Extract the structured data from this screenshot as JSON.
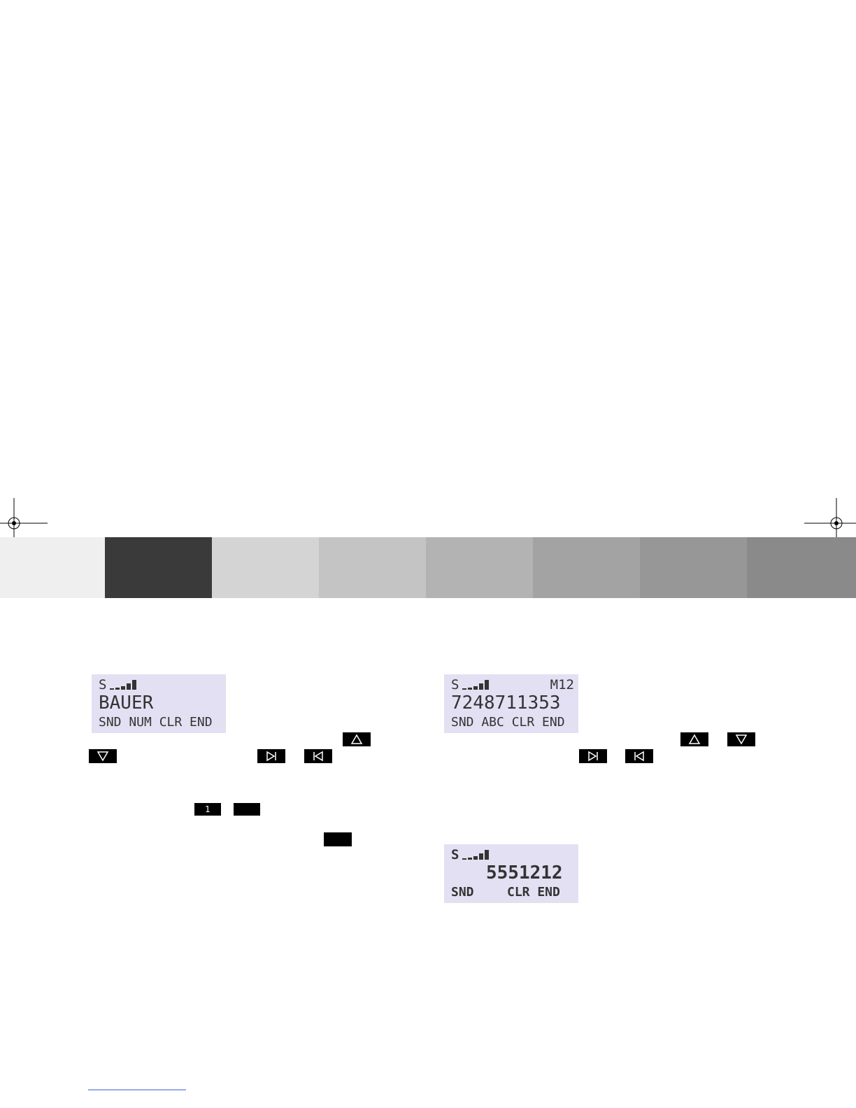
{
  "displays": [
    {
      "status": "S",
      "main": "BAUER",
      "softkeys": "SND NUM CLR END"
    },
    {
      "status": "S",
      "indicator": "M12",
      "main": "7248711353",
      "softkeys": "SND ABC CLR END"
    },
    {
      "status": "S",
      "main": "5551212",
      "softkeys_left": "SND",
      "softkeys_right": "CLR END"
    }
  ],
  "keys": {
    "digit": "1"
  }
}
